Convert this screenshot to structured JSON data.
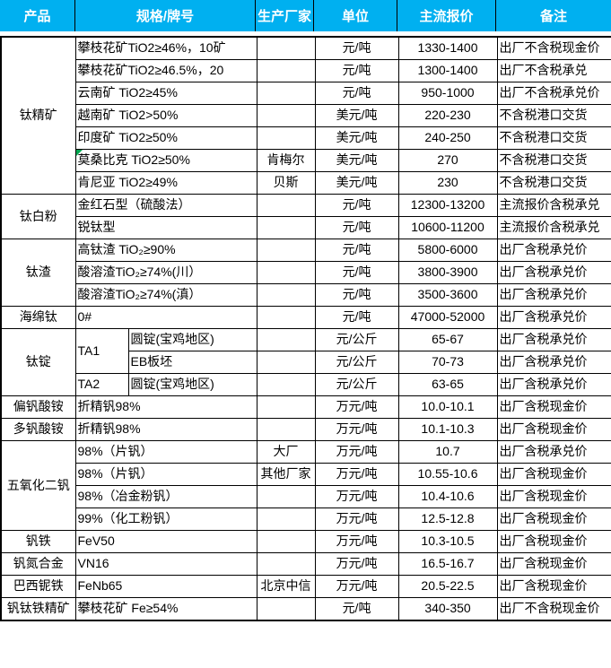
{
  "table": {
    "headers": [
      "产品",
      "规格/牌号",
      "生产厂家",
      "单位",
      "主流报价",
      "备注"
    ],
    "colors": {
      "header_bg": "#00B0F0",
      "header_text": "#FFFFFF",
      "border": "#000000",
      "comment_marker_green": "#00A650"
    },
    "rows": [
      {
        "product": "钛精矿",
        "product_span": 7,
        "spec": "攀枝花矿TiO2≥46%，10矿",
        "manufacturer": "",
        "unit": "元/吨",
        "price": "1330-1400",
        "note": "出厂不含税现金价"
      },
      {
        "spec": "攀枝花矿TiO2≥46.5%，20",
        "manufacturer": "",
        "unit": "元/吨",
        "price": "1300-1400",
        "note": "出厂不含税承兑"
      },
      {
        "spec": "云南矿 TiO2≥45%",
        "manufacturer": "",
        "unit": "元/吨",
        "price": "950-1000",
        "note": "出厂不含税承兑价"
      },
      {
        "spec": "越南矿 TiO2>50%",
        "manufacturer": "",
        "unit": "美元/吨",
        "price": "220-230",
        "note": "不含税港口交货"
      },
      {
        "spec": "印度矿 TiO2≥50%",
        "manufacturer": "",
        "unit": "美元/吨",
        "price": "240-250",
        "note": "不含税港口交货"
      },
      {
        "spec": "莫桑比克 TiO2≥50%",
        "marker": true,
        "manufacturer": "肯梅尔",
        "unit": "美元/吨",
        "price": "270",
        "note": "不含税港口交货"
      },
      {
        "spec": "肯尼亚 TiO2≥49%",
        "manufacturer": "贝斯",
        "unit": "美元/吨",
        "price": "230",
        "note": "不含税港口交货"
      },
      {
        "product": "钛白粉",
        "product_span": 2,
        "spec": "金红石型（硫酸法）",
        "manufacturer": "",
        "unit": "元/吨",
        "price": "12300-13200",
        "note": "主流报价含税承兑"
      },
      {
        "spec": "锐钛型",
        "manufacturer": "",
        "unit": "元/吨",
        "price": "10600-11200",
        "note": "主流报价含税承兑"
      },
      {
        "product": "钛渣",
        "product_span": 3,
        "spec": "高钛渣 TiO₂≥90%",
        "manufacturer": "",
        "unit": "元/吨",
        "price": "5800-6000",
        "note": "出厂含税承兑价"
      },
      {
        "spec": "酸溶渣TiO₂≥74%(川）",
        "manufacturer": "",
        "unit": "元/吨",
        "price": "3800-3900",
        "note": "出厂含税承兑价"
      },
      {
        "spec": "酸溶渣TiO₂≥74%(滇）",
        "manufacturer": "",
        "unit": "元/吨",
        "price": "3500-3600",
        "note": "出厂含税承兑价"
      },
      {
        "product": "海绵钛",
        "product_span": 1,
        "spec": "0#",
        "manufacturer": "",
        "unit": "元/吨",
        "price": "47000-52000",
        "note": "出厂含税承兑价"
      },
      {
        "product": "钛锭",
        "product_span": 3,
        "grade": "TA1",
        "grade_span": 2,
        "grade_col": true,
        "spec": "圆锭(宝鸡地区)",
        "manufacturer": "",
        "unit": "元/公斤",
        "price": "65-67",
        "note": "出厂含税承兑价"
      },
      {
        "grade_col": true,
        "spec": "EB板坯",
        "manufacturer": "",
        "unit": "元/公斤",
        "price": "70-73",
        "note": "出厂含税承兑价"
      },
      {
        "grade": "TA2",
        "grade_span": 1,
        "grade_col": true,
        "spec": "圆锭(宝鸡地区)",
        "manufacturer": "",
        "unit": "元/公斤",
        "price": "63-65",
        "note": "出厂含税承兑价"
      },
      {
        "product": "偏钒酸铵",
        "product_span": 1,
        "spec": "折精钒98%",
        "manufacturer": "",
        "unit": "万元/吨",
        "price": "10.0-10.1",
        "note": "出厂含税现金价"
      },
      {
        "product": "多钒酸铵",
        "product_span": 1,
        "spec": "折精钒98%",
        "manufacturer": "",
        "unit": "万元/吨",
        "price": "10.1-10.3",
        "note": "出厂含税现金价"
      },
      {
        "product": "五氧化二钒",
        "product_span": 4,
        "spec": "98%（片钒）",
        "manufacturer": "大厂",
        "unit": "万元/吨",
        "price": "10.7",
        "note": "出厂含税承兑价"
      },
      {
        "spec": "98%（片钒）",
        "manufacturer": "其他厂家",
        "unit": "万元/吨",
        "price": "10.55-10.6",
        "note": "出厂含税现金价"
      },
      {
        "spec": "98%（冶金粉钒）",
        "manufacturer": "",
        "unit": "万元/吨",
        "price": "10.4-10.6",
        "note": "出厂含税现金价"
      },
      {
        "spec": "99%（化工粉钒）",
        "manufacturer": "",
        "unit": "万元/吨",
        "price": "12.5-12.8",
        "note": "出厂含税现金价"
      },
      {
        "product": "钒铁",
        "product_span": 1,
        "spec": "FeV50",
        "manufacturer": "",
        "unit": "万元/吨",
        "price": "10.3-10.5",
        "note": "出厂含税现金价"
      },
      {
        "product": "钒氮合金",
        "product_span": 1,
        "spec": "VN16",
        "manufacturer": "",
        "unit": "万元/吨",
        "price": "16.5-16.7",
        "note": "出厂含税现金价"
      },
      {
        "product": "巴西铌铁",
        "product_span": 1,
        "spec": "FeNb65",
        "manufacturer": "北京中信",
        "unit": "万元/吨",
        "price": "20.5-22.5",
        "note": "出厂含税现金价"
      },
      {
        "product": "钒钛铁精矿",
        "product_span": 1,
        "spec": "攀枝花矿 Fe≥54%",
        "manufacturer": "",
        "unit": "元/吨",
        "price": "340-350",
        "note": "出厂不含税现金价"
      }
    ]
  }
}
